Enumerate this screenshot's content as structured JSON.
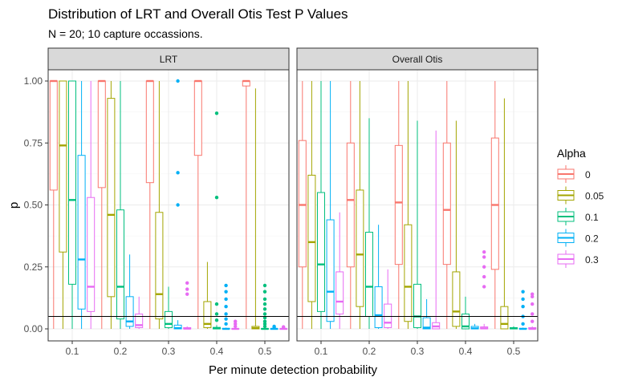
{
  "chart_data": {
    "type": "boxplot",
    "title": "Distribution of LRT and Overall Otis Test P Values",
    "subtitle": "N = 20; 10 capture occassions.",
    "xlabel": "Per minute detection probability",
    "ylabel": "p",
    "ylim": [
      0,
      1
    ],
    "y_ticks": [
      "0.00",
      "0.25",
      "0.50",
      "0.75",
      "1.00"
    ],
    "x_categories": [
      "0.1",
      "0.2",
      "0.3",
      "0.4",
      "0.5"
    ],
    "reference_line_y": 0.05,
    "grid": true,
    "legend": {
      "title": "Alpha",
      "position": "right",
      "items": [
        {
          "label": "0",
          "color": "#F8766D"
        },
        {
          "label": "0.05",
          "color": "#A3A500"
        },
        {
          "label": "0.1",
          "color": "#00BF7D"
        },
        {
          "label": "0.2",
          "color": "#00B0F6"
        },
        {
          "label": "0.3",
          "color": "#E76BF3"
        }
      ]
    },
    "panels": [
      {
        "name": "LRT",
        "groups": [
          {
            "x": "0.1",
            "boxes": [
              {
                "lw": 0,
                "q1": 0.56,
                "med": 1.0,
                "q3": 1.0,
                "uw": 1.0,
                "out": []
              },
              {
                "lw": 0,
                "q1": 0.31,
                "med": 0.74,
                "q3": 1.0,
                "uw": 1.0,
                "out": []
              },
              {
                "lw": 0,
                "q1": 0.18,
                "med": 0.52,
                "q3": 1.0,
                "uw": 1.0,
                "out": []
              },
              {
                "lw": 0,
                "q1": 0.08,
                "med": 0.28,
                "q3": 0.7,
                "uw": 1.0,
                "out": []
              },
              {
                "lw": 0,
                "q1": 0.07,
                "med": 0.17,
                "q3": 0.53,
                "uw": 1.0,
                "out": []
              }
            ]
          },
          {
            "x": "0.2",
            "boxes": [
              {
                "lw": 0,
                "q1": 0.57,
                "med": 1.0,
                "q3": 1.0,
                "uw": 1.0,
                "out": []
              },
              {
                "lw": 0,
                "q1": 0.13,
                "med": 0.46,
                "q3": 0.93,
                "uw": 1.0,
                "out": []
              },
              {
                "lw": 0,
                "q1": 0.04,
                "med": 0.17,
                "q3": 0.48,
                "uw": 1.0,
                "out": []
              },
              {
                "lw": 0,
                "q1": 0.01,
                "med": 0.03,
                "q3": 0.13,
                "uw": 0.3,
                "out": []
              },
              {
                "lw": 0,
                "q1": 0.005,
                "med": 0.015,
                "q3": 0.06,
                "uw": 0.13,
                "out": []
              }
            ]
          },
          {
            "x": "0.3",
            "boxes": [
              {
                "lw": 0,
                "q1": 0.59,
                "med": 1.0,
                "q3": 1.0,
                "uw": 1.0,
                "out": []
              },
              {
                "lw": 0,
                "q1": 0.04,
                "med": 0.14,
                "q3": 0.47,
                "uw": 1.0,
                "out": []
              },
              {
                "lw": 0,
                "q1": 0.005,
                "med": 0.02,
                "q3": 0.07,
                "uw": 0.17,
                "out": []
              },
              {
                "lw": 0,
                "q1": 0.0,
                "med": 0.003,
                "q3": 0.015,
                "uw": 0.035,
                "out": [
                  0.5,
                  0.63,
                  1.0
                ]
              },
              {
                "lw": 0,
                "q1": 0.0,
                "med": 0.001,
                "q3": 0.005,
                "uw": 0.01,
                "out": [
                  0.14,
                  0.16,
                  0.185
                ]
              }
            ]
          },
          {
            "x": "0.4",
            "boxes": [
              {
                "lw": 0,
                "q1": 0.7,
                "med": 1.0,
                "q3": 1.0,
                "uw": 1.0,
                "out": []
              },
              {
                "lw": 0,
                "q1": 0.005,
                "med": 0.02,
                "q3": 0.11,
                "uw": 0.27,
                "out": []
              },
              {
                "lw": 0,
                "q1": 0.0,
                "med": 0.002,
                "q3": 0.006,
                "uw": 0.015,
                "out": [
                  0.035,
                  0.06,
                  0.1,
                  0.53,
                  0.87
                ]
              },
              {
                "lw": 0,
                "q1": 0.0,
                "med": 0.0,
                "q3": 0.002,
                "uw": 0.005,
                "out": [
                  0.02,
                  0.04,
                  0.06,
                  0.09,
                  0.12,
                  0.15,
                  0.175
                ]
              },
              {
                "lw": 0,
                "q1": 0.0,
                "med": 0.0,
                "q3": 0.001,
                "uw": 0.003,
                "out": [
                  0.01,
                  0.02,
                  0.03
                ]
              }
            ]
          },
          {
            "x": "0.5",
            "boxes": [
              {
                "lw": 0,
                "q1": 0.98,
                "med": 1.0,
                "q3": 1.0,
                "uw": 1.0,
                "out": []
              },
              {
                "lw": 0,
                "q1": 0.0,
                "med": 0.003,
                "q3": 0.01,
                "uw": 0.97,
                "out": []
              },
              {
                "lw": 0,
                "q1": 0.0,
                "med": 0.0,
                "q3": 0.001,
                "uw": 0.002,
                "out": [
                  0.01,
                  0.02,
                  0.03,
                  0.045,
                  0.06,
                  0.08,
                  0.1,
                  0.12,
                  0.15,
                  0.175
                ]
              },
              {
                "lw": 0,
                "q1": 0.0,
                "med": 0.0,
                "q3": 0.0005,
                "uw": 0.001,
                "out": [
                  0.005,
                  0.01
                ]
              },
              {
                "lw": 0,
                "q1": 0.0,
                "med": 0.0,
                "q3": 0.0005,
                "uw": 0.001,
                "out": [
                  0.004,
                  0.008
                ]
              }
            ]
          }
        ]
      },
      {
        "name": "Overall Otis",
        "groups": [
          {
            "x": "0.1",
            "boxes": [
              {
                "lw": 0,
                "q1": 0.25,
                "med": 0.5,
                "q3": 0.76,
                "uw": 1.0,
                "out": []
              },
              {
                "lw": 0,
                "q1": 0.11,
                "med": 0.35,
                "q3": 0.62,
                "uw": 1.0,
                "out": []
              },
              {
                "lw": 0,
                "q1": 0.07,
                "med": 0.26,
                "q3": 0.55,
                "uw": 1.0,
                "out": []
              },
              {
                "lw": 0,
                "q1": 0.03,
                "med": 0.15,
                "q3": 0.44,
                "uw": 1.0,
                "out": []
              },
              {
                "lw": 0,
                "q1": 0.06,
                "med": 0.11,
                "q3": 0.23,
                "uw": 0.47,
                "out": []
              }
            ]
          },
          {
            "x": "0.2",
            "boxes": [
              {
                "lw": 0,
                "q1": 0.25,
                "med": 0.52,
                "q3": 0.75,
                "uw": 1.0,
                "out": []
              },
              {
                "lw": 0,
                "q1": 0.09,
                "med": 0.3,
                "q3": 0.56,
                "uw": 1.0,
                "out": []
              },
              {
                "lw": 0,
                "q1": 0.05,
                "med": 0.17,
                "q3": 0.39,
                "uw": 0.85,
                "out": []
              },
              {
                "lw": 0,
                "q1": 0.005,
                "med": 0.055,
                "q3": 0.17,
                "uw": 0.42,
                "out": []
              },
              {
                "lw": 0,
                "q1": 0.005,
                "med": 0.025,
                "q3": 0.1,
                "uw": 0.24,
                "out": []
              }
            ]
          },
          {
            "x": "0.3",
            "boxes": [
              {
                "lw": 0,
                "q1": 0.26,
                "med": 0.51,
                "q3": 0.74,
                "uw": 1.0,
                "out": []
              },
              {
                "lw": 0,
                "q1": 0.03,
                "med": 0.17,
                "q3": 0.42,
                "uw": 1.0,
                "out": []
              },
              {
                "lw": 0,
                "q1": 0.005,
                "med": 0.05,
                "q3": 0.18,
                "uw": 0.84,
                "out": []
              },
              {
                "lw": 0,
                "q1": 0.0,
                "med": 0.005,
                "q3": 0.045,
                "uw": 0.12,
                "out": []
              },
              {
                "lw": 0,
                "q1": 0.0,
                "med": 0.01,
                "q3": 0.025,
                "uw": 0.8,
                "out": []
              }
            ]
          },
          {
            "x": "0.4",
            "boxes": [
              {
                "lw": 0,
                "q1": 0.26,
                "med": 0.48,
                "q3": 0.75,
                "uw": 1.0,
                "out": []
              },
              {
                "lw": 0,
                "q1": 0.01,
                "med": 0.07,
                "q3": 0.23,
                "uw": 0.84,
                "out": []
              },
              {
                "lw": 0,
                "q1": 0.0,
                "med": 0.01,
                "q3": 0.06,
                "uw": 0.13,
                "out": []
              },
              {
                "lw": 0,
                "q1": 0.0,
                "med": 0.002,
                "q3": 0.01,
                "uw": 0.02,
                "out": []
              },
              {
                "lw": 0,
                "q1": 0.0,
                "med": 0.002,
                "q3": 0.008,
                "uw": 0.02,
                "out": [
                  0.17,
                  0.21,
                  0.25,
                  0.29,
                  0.31
                ]
              }
            ]
          },
          {
            "x": "0.5",
            "boxes": [
              {
                "lw": 0,
                "q1": 0.24,
                "med": 0.5,
                "q3": 0.77,
                "uw": 1.0,
                "out": []
              },
              {
                "lw": 0,
                "q1": 0.0,
                "med": 0.02,
                "q3": 0.09,
                "uw": 0.93,
                "out": []
              },
              {
                "lw": 0,
                "q1": 0.0,
                "med": 0.002,
                "q3": 0.005,
                "uw": 0.01,
                "out": []
              },
              {
                "lw": 0,
                "q1": 0.0,
                "med": 0.0,
                "q3": 0.002,
                "uw": 0.005,
                "out": [
                  0.02,
                  0.05,
                  0.09,
                  0.12,
                  0.15
                ]
              },
              {
                "lw": 0,
                "q1": 0.0,
                "med": 0.0,
                "q3": 0.005,
                "uw": 0.01,
                "out": [
                  0.03,
                  0.06,
                  0.1,
                  0.13,
                  0.14
                ]
              }
            ]
          }
        ]
      }
    ]
  }
}
